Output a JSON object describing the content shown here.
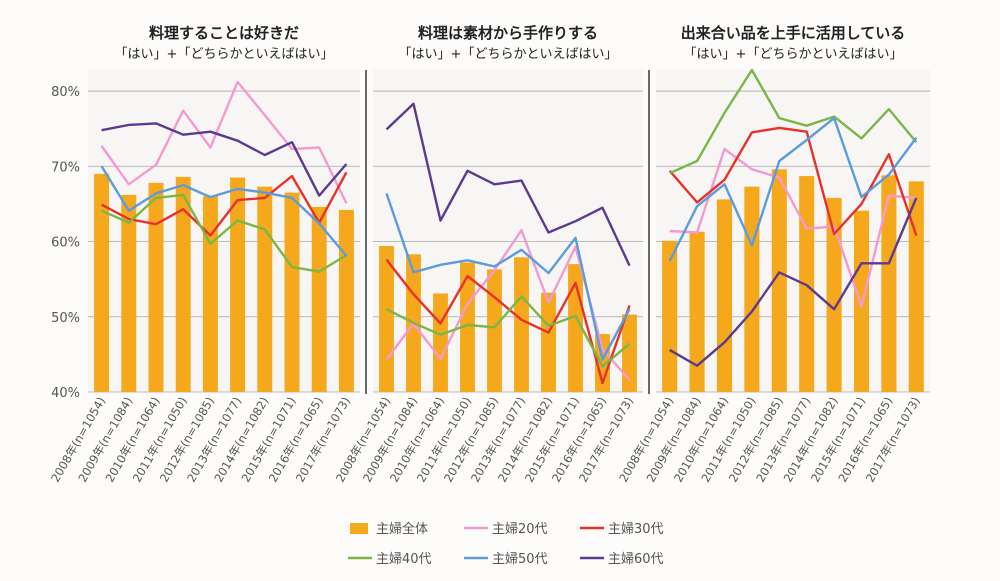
{
  "colors": {
    "bar": "#f5a81c",
    "gridline": "#a8a8a8",
    "panel_bg": "#f7f6f4"
  },
  "chart_data": {
    "type": "bar",
    "ylim": [
      40,
      82
    ],
    "yticks": [
      "40%",
      "50%",
      "60%",
      "70%",
      "80%"
    ],
    "ytick_values": [
      40,
      50,
      60,
      70,
      80
    ],
    "categories": [
      "2008年(n=1054)",
      "2009年(n=1084)",
      "2010年(n=1064)",
      "2011年(n=1050)",
      "2012年(n=1085)",
      "2013年(n=1077)",
      "2014年(n=1082)",
      "2015年(n=1071)",
      "2016年(n=1065)",
      "2017年(n=1073)"
    ],
    "legend": [
      {
        "name": "主婦全体",
        "kind": "bar",
        "color": "#f5a81c"
      },
      {
        "name": "主婦20代",
        "kind": "line",
        "color": "#f49ad0"
      },
      {
        "name": "主婦30代",
        "kind": "line",
        "color": "#e8312a"
      },
      {
        "name": "主婦40代",
        "kind": "line",
        "color": "#7ab648"
      },
      {
        "name": "主婦50代",
        "kind": "line",
        "color": "#5b9bde"
      },
      {
        "name": "主婦60代",
        "kind": "line",
        "color": "#5c3a8e"
      }
    ],
    "panels": [
      {
        "title": "料理することは好きだ",
        "subtitle": "「はい」+「どちらかといえばはい」",
        "bars": [
          69,
          66.2,
          67.8,
          68.6,
          66,
          68.5,
          67.3,
          66.5,
          64.6,
          64.2
        ],
        "series": [
          {
            "name": "主婦20代",
            "values": [
              72.7,
              67.6,
              70.2,
              77.4,
              72.5,
              81.2,
              76.8,
              72.3,
              72.5,
              65.1
            ]
          },
          {
            "name": "主婦30代",
            "values": [
              64.9,
              63,
              62.3,
              64.3,
              60.8,
              65.5,
              65.8,
              68.7,
              62.5,
              69.2
            ]
          },
          {
            "name": "主婦40代",
            "values": [
              64.1,
              62.5,
              65.8,
              66.2,
              59.7,
              62.8,
              61.6,
              56.6,
              56,
              58.2
            ]
          },
          {
            "name": "主婦50代",
            "values": [
              70,
              64.1,
              66.4,
              67.5,
              65.9,
              67,
              66.5,
              65.8,
              62.4,
              58.1
            ]
          },
          {
            "name": "主婦60代",
            "values": [
              74.8,
              75.5,
              75.7,
              74.2,
              74.6,
              73.4,
              71.5,
              73.2,
              66.1,
              70.3
            ]
          }
        ]
      },
      {
        "title": "料理は素材から手作りする",
        "subtitle": "「はい」+「どちらかといえばはい」",
        "bars": [
          59.4,
          58.3,
          53.1,
          57.2,
          56.3,
          57.9,
          53.2,
          57,
          47.7,
          50.3
        ],
        "series": [
          {
            "name": "主婦20代",
            "values": [
              44.3,
              49.1,
              44.4,
              51.7,
              56.2,
              61.5,
              51.9,
              59.3,
              45.7,
              41.6
            ]
          },
          {
            "name": "主婦30代",
            "values": [
              57.6,
              53,
              49.1,
              55.4,
              52.6,
              49.6,
              47.9,
              54.5,
              41.2,
              51.5
            ]
          },
          {
            "name": "主婦40代",
            "values": [
              51,
              49.2,
              47.6,
              48.9,
              48.6,
              52.7,
              48.8,
              50.1,
              43.4,
              46.4
            ]
          },
          {
            "name": "主婦50代",
            "values": [
              66.4,
              55.9,
              56.9,
              57.5,
              56.7,
              58.9,
              55.8,
              60.5,
              44.3,
              51
            ]
          },
          {
            "name": "主婦60代",
            "values": [
              74.9,
              78.3,
              62.8,
              69.4,
              67.6,
              68.1,
              61.2,
              62.7,
              64.5,
              56.8
            ]
          }
        ]
      },
      {
        "title": "出来合い品を上手に活用している",
        "subtitle": "「はい」+「どちらかといえばはい」",
        "bars": [
          60.1,
          61.3,
          65.6,
          67.3,
          69.6,
          68.7,
          65.8,
          64.1,
          68.8,
          68
        ],
        "series": [
          {
            "name": "主婦20代",
            "values": [
              61.4,
              61.2,
              72.3,
              69.6,
              68.5,
              61.7,
              62,
              51.4,
              66.1,
              65.8
            ]
          },
          {
            "name": "主婦30代",
            "values": [
              69.4,
              65.2,
              68.2,
              74.5,
              75.1,
              74.6,
              61,
              65,
              71.6,
              60.8
            ]
          },
          {
            "name": "主婦40代",
            "values": [
              69.1,
              70.7,
              77.1,
              82.8,
              76.4,
              75.4,
              76.6,
              73.7,
              77.6,
              73.2
            ]
          },
          {
            "name": "主婦50代",
            "values": [
              57.4,
              64.7,
              67.6,
              59.5,
              70.7,
              73.5,
              76.4,
              65.9,
              68.9,
              73.8
            ]
          },
          {
            "name": "主婦60代",
            "values": [
              45.6,
              43.5,
              46.6,
              50.7,
              55.9,
              54.2,
              51,
              57.1,
              57.1,
              65.8
            ]
          }
        ]
      }
    ]
  }
}
